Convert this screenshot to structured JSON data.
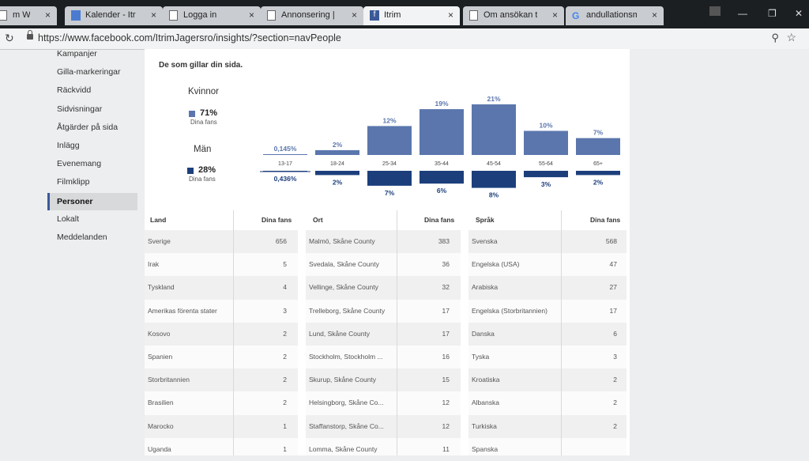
{
  "browser": {
    "tabs": [
      {
        "label": "m World",
        "icon": "page-icon",
        "active": false
      },
      {
        "label": "Kalender - Itrim",
        "icon": "calendar-icon",
        "active": false
      },
      {
        "label": "Logga in",
        "icon": "page-icon",
        "active": false
      },
      {
        "label": "Annonsering | A",
        "icon": "page-icon",
        "active": false
      },
      {
        "label": "Itrim",
        "icon": "facebook-icon",
        "active": true
      },
      {
        "label": "Om ansökan till",
        "icon": "page-icon",
        "active": false
      },
      {
        "label": "andullationsmas",
        "icon": "google-icon",
        "active": false
      }
    ],
    "url": "https://www.facebook.com/ItrimJagersro/insights/?section=navPeople"
  },
  "sidebar": {
    "items": [
      {
        "label": "Kampanjer",
        "active": false
      },
      {
        "label": "Gilla-markeringar",
        "active": false
      },
      {
        "label": "Räckvidd",
        "active": false
      },
      {
        "label": "Sidvisningar",
        "active": false
      },
      {
        "label": "Åtgärder på sida",
        "active": false
      },
      {
        "label": "Inlägg",
        "active": false
      },
      {
        "label": "Evenemang",
        "active": false
      },
      {
        "label": "Filmklipp",
        "active": false
      },
      {
        "label": "Personer",
        "active": true
      },
      {
        "label": "Lokalt",
        "active": false
      },
      {
        "label": "Meddelanden",
        "active": false
      }
    ]
  },
  "section_title": "De som gillar din sida.",
  "gender": {
    "women": {
      "label": "Kvinnor",
      "pct": "71%",
      "sub": "Dina fans",
      "color": "#5b76ad"
    },
    "men": {
      "label": "Män",
      "pct": "28%",
      "sub": "Dina fans",
      "color": "#1c3f7c"
    }
  },
  "chart_data": {
    "type": "bar",
    "categories": [
      "13-17",
      "18-24",
      "25-34",
      "35-44",
      "45-54",
      "55-64",
      "65+"
    ],
    "series": [
      {
        "name": "Kvinnor",
        "values": [
          0.145,
          2,
          12,
          19,
          21,
          10,
          7
        ],
        "labels": [
          "0,145%",
          "2%",
          "12%",
          "19%",
          "21%",
          "10%",
          "7%"
        ],
        "color": "#5b76ad"
      },
      {
        "name": "Män",
        "values": [
          0.436,
          2,
          7,
          6,
          8,
          3,
          2
        ],
        "labels": [
          "0,436%",
          "2%",
          "7%",
          "6%",
          "8%",
          "3%",
          "2%"
        ],
        "color": "#1c3f7c"
      }
    ]
  },
  "tables": {
    "land": {
      "header_name": "Land",
      "header_value": "Dina fans",
      "rows": [
        {
          "name": "Sverige",
          "value": "656"
        },
        {
          "name": "Irak",
          "value": "5"
        },
        {
          "name": "Tyskland",
          "value": "4"
        },
        {
          "name": "Amerikas förenta stater",
          "value": "3"
        },
        {
          "name": "Kosovo",
          "value": "2"
        },
        {
          "name": "Spanien",
          "value": "2"
        },
        {
          "name": "Storbritannien",
          "value": "2"
        },
        {
          "name": "Brasilien",
          "value": "2"
        },
        {
          "name": "Marocko",
          "value": "1"
        },
        {
          "name": "Uganda",
          "value": "1"
        }
      ]
    },
    "ort": {
      "header_name": "Ort",
      "header_value": "Dina fans",
      "rows": [
        {
          "name": "Malmö, Skåne County",
          "value": "383"
        },
        {
          "name": "Svedala, Skåne County",
          "value": "36"
        },
        {
          "name": "Vellinge, Skåne County",
          "value": "32"
        },
        {
          "name": "Trelleborg, Skåne County",
          "value": "17"
        },
        {
          "name": "Lund, Skåne County",
          "value": "17"
        },
        {
          "name": "Stockholm, Stockholm ...",
          "value": "16"
        },
        {
          "name": "Skurup, Skåne County",
          "value": "15"
        },
        {
          "name": "Helsingborg, Skåne Co...",
          "value": "12"
        },
        {
          "name": "Staffanstorp, Skåne Co...",
          "value": "12"
        },
        {
          "name": "Lomma, Skåne County",
          "value": "11"
        }
      ]
    },
    "sprak": {
      "header_name": "Språk",
      "header_value": "Dina fans",
      "rows": [
        {
          "name": "Svenska",
          "value": "568"
        },
        {
          "name": "Engelska (USA)",
          "value": "47"
        },
        {
          "name": "Arabiska",
          "value": "27"
        },
        {
          "name": "Engelska (Storbritannien)",
          "value": "17"
        },
        {
          "name": "Danska",
          "value": "6"
        },
        {
          "name": "Tyska",
          "value": "3"
        },
        {
          "name": "Kroatiska",
          "value": "2"
        },
        {
          "name": "Albanska",
          "value": "2"
        },
        {
          "name": "Turkiska",
          "value": "2"
        },
        {
          "name": "Spanska",
          "value": ""
        }
      ]
    }
  }
}
